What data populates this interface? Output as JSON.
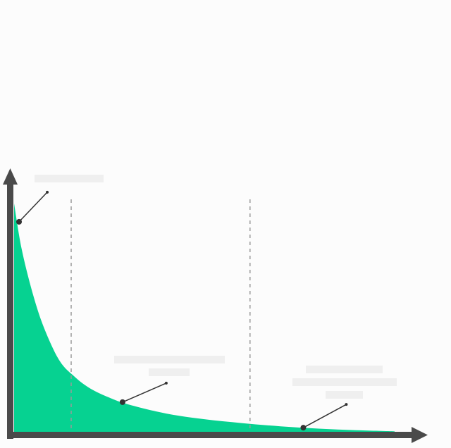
{
  "chart_data": {
    "type": "area",
    "title": "",
    "xlabel": "",
    "ylabel": "",
    "grid": false,
    "legend": "none",
    "x": [
      0,
      2,
      5,
      8,
      12,
      16,
      20,
      25,
      30,
      40,
      50,
      60,
      70,
      80,
      90,
      100
    ],
    "series": [
      {
        "values": [
          100,
          80,
          60,
          45,
          31,
          24,
          19,
          15,
          12,
          8,
          5.5,
          3.8,
          2.4,
          1.4,
          0.7,
          0.2
        ]
      }
    ],
    "xlim": [
      0,
      100
    ],
    "ylim": [
      0,
      100
    ],
    "vertical_dividers_x": [
      15,
      62
    ],
    "callout_points": [
      {
        "x": 1.3,
        "y": 92
      },
      {
        "x": 28.5,
        "y": 13
      },
      {
        "x": 76,
        "y": 1.8
      }
    ],
    "placeholder_text_blocks": [
      {
        "lines": 1
      },
      {
        "lines": 2
      },
      {
        "lines": 3
      }
    ]
  },
  "colors": {
    "background": "#fcfcfc",
    "area_fill": "#06d291",
    "axis": "#4a4a4a",
    "divider": "#999999",
    "callout": "#333333",
    "placeholder": "#efefef"
  }
}
